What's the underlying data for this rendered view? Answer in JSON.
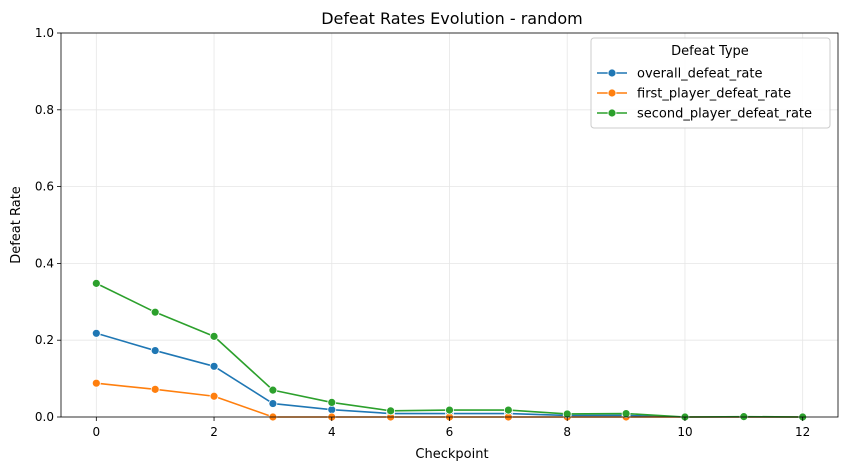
{
  "chart_data": {
    "type": "line",
    "title": "Defeat Rates Evolution - random",
    "xlabel": "Checkpoint",
    "ylabel": "Defeat Rate",
    "xlim": [
      -0.6,
      12.6
    ],
    "ylim": [
      0,
      1.0
    ],
    "x_ticks": [
      0,
      2,
      4,
      6,
      8,
      10,
      12
    ],
    "y_ticks": [
      0.0,
      0.2,
      0.4,
      0.6,
      0.8,
      1.0
    ],
    "y_tick_labels": [
      "0.0",
      "0.2",
      "0.4",
      "0.6",
      "0.8",
      "1.0"
    ],
    "grid": true,
    "legend_title": "Defeat Type",
    "legend_position": "top-right",
    "x": [
      0,
      1,
      2,
      3,
      4,
      5,
      6,
      7,
      8,
      9,
      10,
      11,
      12
    ],
    "series": [
      {
        "name": "overall_defeat_rate",
        "color": "#1f77b4",
        "values": [
          0.218,
          0.173,
          0.132,
          0.035,
          0.019,
          0.009,
          0.009,
          0.009,
          0.004,
          0.004,
          0.0,
          0.0,
          0.0
        ]
      },
      {
        "name": "first_player_defeat_rate",
        "color": "#ff7f0e",
        "values": [
          0.088,
          0.072,
          0.054,
          0.0,
          0.0,
          0.0,
          0.0,
          0.0,
          0.0,
          0.0,
          0.0,
          0.0,
          0.0
        ]
      },
      {
        "name": "second_player_defeat_rate",
        "color": "#2ca02c",
        "values": [
          0.348,
          0.273,
          0.21,
          0.07,
          0.038,
          0.016,
          0.018,
          0.018,
          0.008,
          0.009,
          0.0,
          0.001,
          0.0
        ]
      }
    ]
  }
}
